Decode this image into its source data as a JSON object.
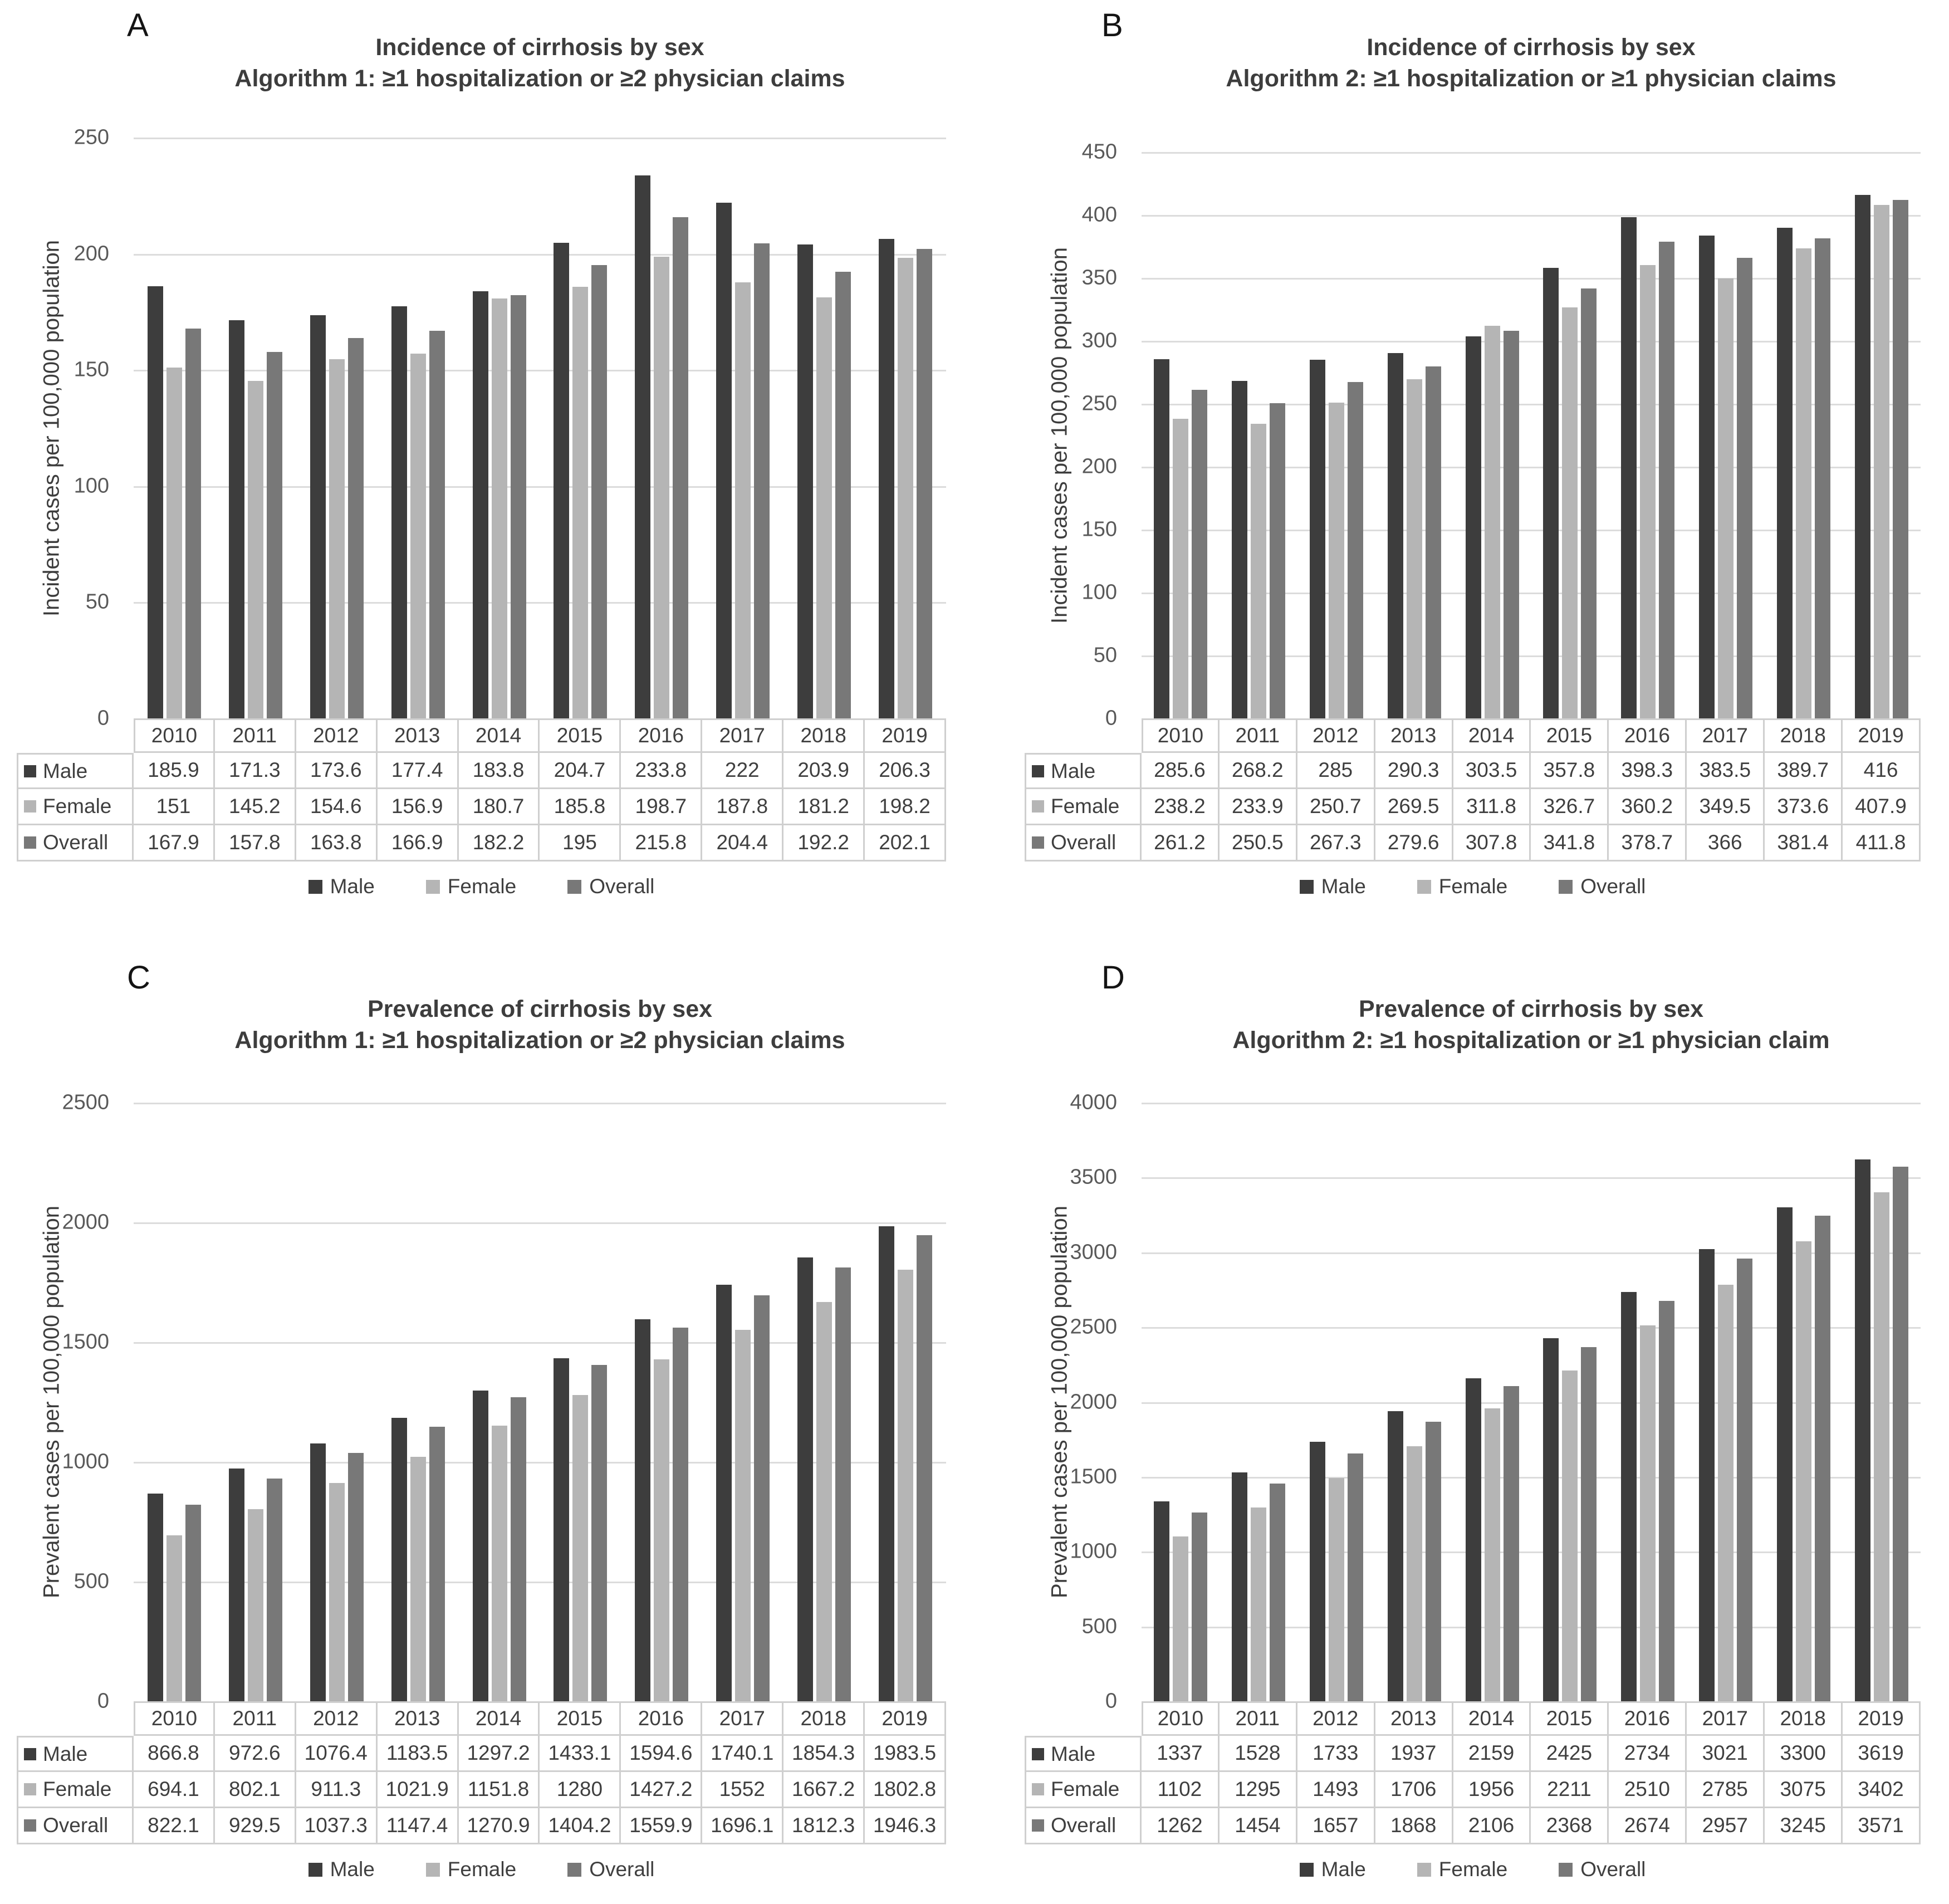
{
  "chart_data": [
    {
      "type": "bar",
      "panel_label": "A",
      "title": "Incidence of cirrhosis by sex",
      "subtitle": "Algorithm 1: ≥1 hospitalization or ≥2 physician claims",
      "ylabel": "Incident cases per 100,000 population",
      "ylim": [
        0,
        250
      ],
      "ytick_step": 50,
      "yticks": [
        "250",
        "200",
        "150",
        "100",
        "50",
        "0"
      ],
      "grid": true,
      "legend_position": "bottom",
      "categories": [
        "2010",
        "2011",
        "2012",
        "2013",
        "2014",
        "2015",
        "2016",
        "2017",
        "2018",
        "2019"
      ],
      "series": [
        {
          "name": "Male",
          "color": "#3d3d3d",
          "values": [
            "185.9",
            "171.3",
            "173.6",
            "177.4",
            "183.8",
            "204.7",
            "233.8",
            "222",
            "203.9",
            "206.3"
          ]
        },
        {
          "name": "Female",
          "color": "#b5b5b5",
          "values": [
            "151",
            "145.2",
            "154.6",
            "156.9",
            "180.7",
            "185.8",
            "198.7",
            "187.8",
            "181.2",
            "198.2"
          ]
        },
        {
          "name": "Overall",
          "color": "#787878",
          "values": [
            "167.9",
            "157.8",
            "163.8",
            "166.9",
            "182.2",
            "195",
            "215.8",
            "204.4",
            "192.2",
            "202.1"
          ]
        }
      ]
    },
    {
      "type": "bar",
      "panel_label": "B",
      "title": "Incidence of cirrhosis by sex",
      "subtitle": "Algorithm 2: ≥1 hospitalization or ≥1 physician claims",
      "ylabel": "Incident cases per 100,000 population",
      "ylim": [
        0,
        450
      ],
      "ytick_step": 50,
      "yticks": [
        "450",
        "400",
        "350",
        "300",
        "250",
        "200",
        "150",
        "100",
        "50",
        "0"
      ],
      "grid": true,
      "legend_position": "bottom",
      "categories": [
        "2010",
        "2011",
        "2012",
        "2013",
        "2014",
        "2015",
        "2016",
        "2017",
        "2018",
        "2019"
      ],
      "series": [
        {
          "name": "Male",
          "color": "#3d3d3d",
          "values": [
            "285.6",
            "268.2",
            "285",
            "290.3",
            "303.5",
            "357.8",
            "398.3",
            "383.5",
            "389.7",
            "416"
          ]
        },
        {
          "name": "Female",
          "color": "#b5b5b5",
          "values": [
            "238.2",
            "233.9",
            "250.7",
            "269.5",
            "311.8",
            "326.7",
            "360.2",
            "349.5",
            "373.6",
            "407.9"
          ]
        },
        {
          "name": "Overall",
          "color": "#787878",
          "values": [
            "261.2",
            "250.5",
            "267.3",
            "279.6",
            "307.8",
            "341.8",
            "378.7",
            "366",
            "381.4",
            "411.8"
          ]
        }
      ]
    },
    {
      "type": "bar",
      "panel_label": "C",
      "title": "Prevalence of cirrhosis by sex",
      "subtitle": "Algorithm 1: ≥1 hospitalization or ≥2 physician claims",
      "ylabel": "Prevalent cases per 100,000 population",
      "ylim": [
        0,
        2500
      ],
      "ytick_step": 500,
      "yticks": [
        "2500",
        "2000",
        "1500",
        "1000",
        "500",
        "0"
      ],
      "grid": true,
      "legend_position": "bottom",
      "categories": [
        "2010",
        "2011",
        "2012",
        "2013",
        "2014",
        "2015",
        "2016",
        "2017",
        "2018",
        "2019"
      ],
      "series": [
        {
          "name": "Male",
          "color": "#3d3d3d",
          "values": [
            "866.8",
            "972.6",
            "1076.4",
            "1183.5",
            "1297.2",
            "1433.1",
            "1594.6",
            "1740.1",
            "1854.3",
            "1983.5"
          ]
        },
        {
          "name": "Female",
          "color": "#b5b5b5",
          "values": [
            "694.1",
            "802.1",
            "911.3",
            "1021.9",
            "1151.8",
            "1280",
            "1427.2",
            "1552",
            "1667.2",
            "1802.8"
          ]
        },
        {
          "name": "Overall",
          "color": "#787878",
          "values": [
            "822.1",
            "929.5",
            "1037.3",
            "1147.4",
            "1270.9",
            "1404.2",
            "1559.9",
            "1696.1",
            "1812.3",
            "1946.3"
          ]
        }
      ]
    },
    {
      "type": "bar",
      "panel_label": "D",
      "title": "Prevalence of cirrhosis by sex",
      "subtitle": "Algorithm 2: ≥1 hospitalization or ≥1 physician claim",
      "ylabel": "Prevalent cases per 100,000 population",
      "ylim": [
        0,
        4000
      ],
      "ytick_step": 500,
      "yticks": [
        "4000",
        "3500",
        "3000",
        "2500",
        "2000",
        "1500",
        "1000",
        "500",
        "0"
      ],
      "grid": true,
      "legend_position": "bottom",
      "categories": [
        "2010",
        "2011",
        "2012",
        "2013",
        "2014",
        "2015",
        "2016",
        "2017",
        "2018",
        "2019"
      ],
      "series": [
        {
          "name": "Male",
          "color": "#3d3d3d",
          "values": [
            "1337",
            "1528",
            "1733",
            "1937",
            "2159",
            "2425",
            "2734",
            "3021",
            "3300",
            "3619"
          ]
        },
        {
          "name": "Female",
          "color": "#b5b5b5",
          "values": [
            "1102",
            "1295",
            "1493",
            "1706",
            "1956",
            "2211",
            "2510",
            "2785",
            "3075",
            "3402"
          ]
        },
        {
          "name": "Overall",
          "color": "#787878",
          "values": [
            "1262",
            "1454",
            "1657",
            "1868",
            "2106",
            "2368",
            "2674",
            "2957",
            "3245",
            "3571"
          ]
        }
      ]
    }
  ]
}
